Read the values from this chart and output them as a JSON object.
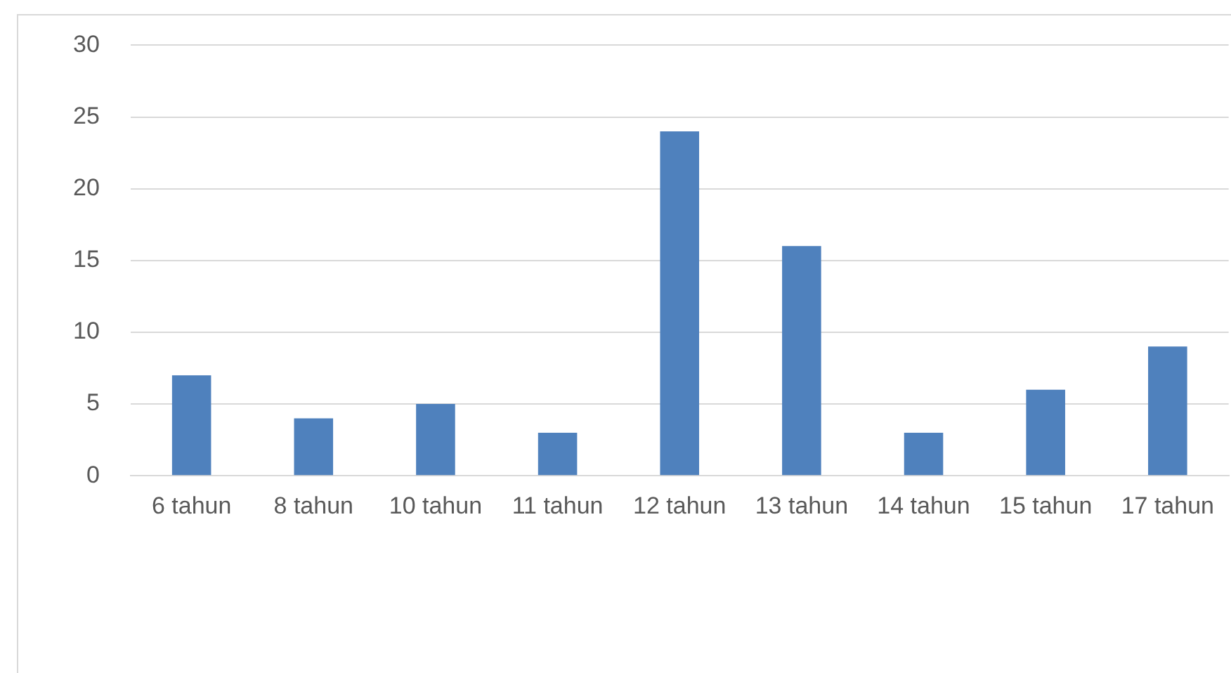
{
  "chart_data": {
    "type": "bar",
    "categories": [
      "6 tahun",
      "8 tahun",
      "10 tahun",
      "11 tahun",
      "12 tahun",
      "13 tahun",
      "14 tahun",
      "15 tahun",
      "17 tahun"
    ],
    "values": [
      7,
      4,
      5,
      3,
      24,
      16,
      3,
      6,
      9
    ],
    "color": "#4f81bd",
    "ylim": [
      0,
      30
    ],
    "yticks": [
      0,
      5,
      10,
      15,
      20,
      25,
      30
    ],
    "grid": "y"
  }
}
